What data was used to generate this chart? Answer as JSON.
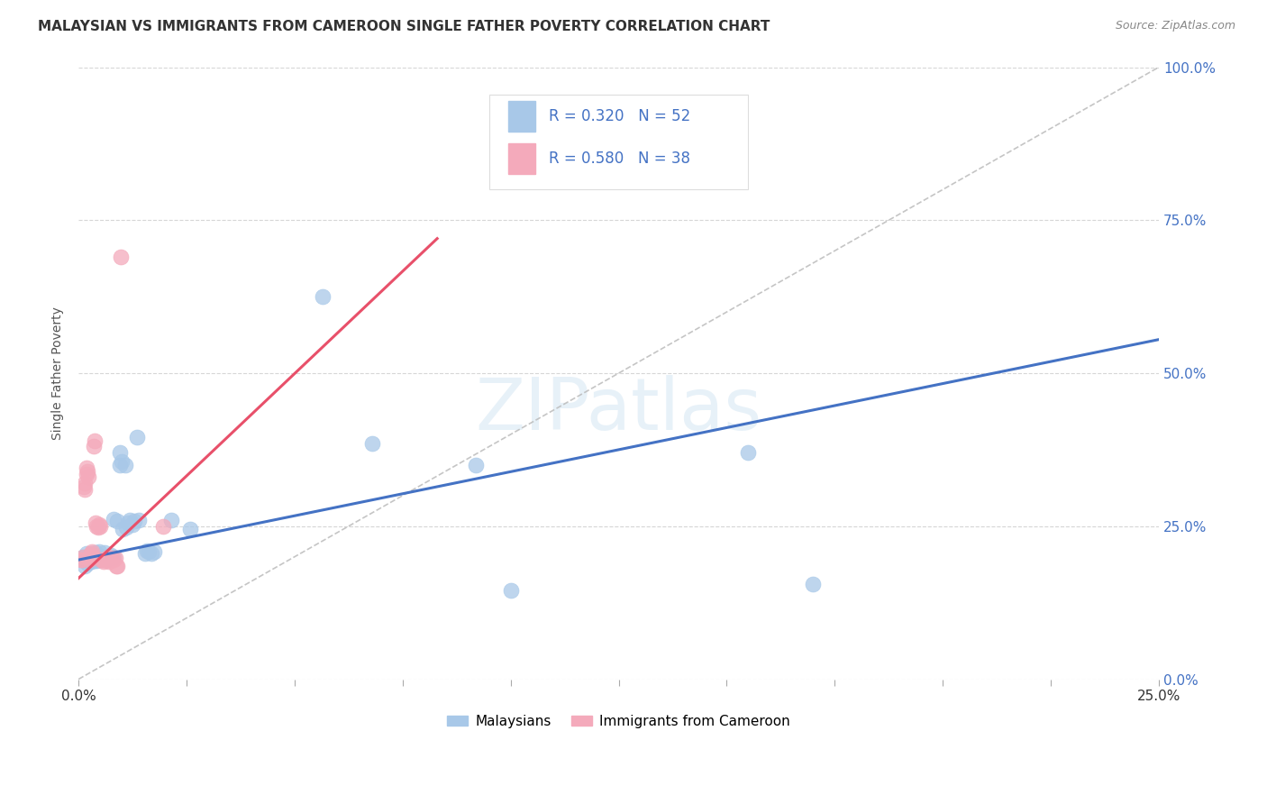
{
  "title": "MALAYSIAN VS IMMIGRANTS FROM CAMEROON SINGLE FATHER POVERTY CORRELATION CHART",
  "source": "Source: ZipAtlas.com",
  "ylabel": "Single Father Poverty",
  "watermark": "ZIPatlas",
  "legend_blue_label": "Malaysians",
  "legend_pink_label": "Immigrants from Cameroon",
  "blue_scatter_color": "#A8C8E8",
  "pink_scatter_color": "#F4AABB",
  "blue_line_color": "#4472C4",
  "pink_line_color": "#E8506A",
  "diag_line_color": "#BBBBBB",
  "xlim": [
    0.0,
    0.25
  ],
  "ylim": [
    0.0,
    1.0
  ],
  "blue_line_x": [
    0.0,
    0.25
  ],
  "blue_line_y": [
    0.195,
    0.555
  ],
  "pink_line_x": [
    0.0,
    0.083
  ],
  "pink_line_y": [
    0.165,
    0.72
  ],
  "blue_points": [
    [
      0.0008,
      0.195
    ],
    [
      0.001,
      0.2
    ],
    [
      0.0012,
      0.195
    ],
    [
      0.0015,
      0.185
    ],
    [
      0.0018,
      0.195
    ],
    [
      0.0018,
      0.205
    ],
    [
      0.002,
      0.19
    ],
    [
      0.0022,
      0.195
    ],
    [
      0.0025,
      0.195
    ],
    [
      0.0025,
      0.2
    ],
    [
      0.0028,
      0.192
    ],
    [
      0.0028,
      0.205
    ],
    [
      0.003,
      0.195
    ],
    [
      0.0032,
      0.198
    ],
    [
      0.0035,
      0.193
    ],
    [
      0.0035,
      0.2
    ],
    [
      0.0038,
      0.195
    ],
    [
      0.004,
      0.198
    ],
    [
      0.004,
      0.207
    ],
    [
      0.0042,
      0.193
    ],
    [
      0.0045,
      0.195
    ],
    [
      0.0048,
      0.208
    ],
    [
      0.005,
      0.195
    ],
    [
      0.0055,
      0.2
    ],
    [
      0.0058,
      0.198
    ],
    [
      0.006,
      0.207
    ],
    [
      0.0065,
      0.195
    ],
    [
      0.0068,
      0.2
    ],
    [
      0.007,
      0.198
    ],
    [
      0.0075,
      0.202
    ],
    [
      0.008,
      0.2
    ],
    [
      0.008,
      0.262
    ],
    [
      0.009,
      0.258
    ],
    [
      0.0095,
      0.35
    ],
    [
      0.0095,
      0.37
    ],
    [
      0.01,
      0.355
    ],
    [
      0.0102,
      0.245
    ],
    [
      0.0108,
      0.35
    ],
    [
      0.011,
      0.248
    ],
    [
      0.0115,
      0.255
    ],
    [
      0.0118,
      0.26
    ],
    [
      0.0125,
      0.252
    ],
    [
      0.013,
      0.258
    ],
    [
      0.0135,
      0.395
    ],
    [
      0.014,
      0.26
    ],
    [
      0.0155,
      0.205
    ],
    [
      0.0158,
      0.21
    ],
    [
      0.0162,
      0.208
    ],
    [
      0.0168,
      0.205
    ],
    [
      0.0175,
      0.208
    ],
    [
      0.0215,
      0.26
    ],
    [
      0.0258,
      0.245
    ],
    [
      0.0565,
      0.625
    ],
    [
      0.068,
      0.385
    ],
    [
      0.092,
      0.35
    ],
    [
      0.1,
      0.145
    ],
    [
      0.155,
      0.37
    ],
    [
      0.17,
      0.155
    ]
  ],
  "pink_points": [
    [
      0.0005,
      0.195
    ],
    [
      0.0008,
      0.195
    ],
    [
      0.001,
      0.2
    ],
    [
      0.0012,
      0.315
    ],
    [
      0.0014,
      0.32
    ],
    [
      0.0015,
      0.31
    ],
    [
      0.0018,
      0.335
    ],
    [
      0.0018,
      0.345
    ],
    [
      0.002,
      0.34
    ],
    [
      0.0022,
      0.33
    ],
    [
      0.0025,
      0.195
    ],
    [
      0.0025,
      0.2
    ],
    [
      0.0028,
      0.205
    ],
    [
      0.0028,
      0.2
    ],
    [
      0.003,
      0.2
    ],
    [
      0.0032,
      0.202
    ],
    [
      0.0032,
      0.208
    ],
    [
      0.0035,
      0.38
    ],
    [
      0.0038,
      0.39
    ],
    [
      0.004,
      0.255
    ],
    [
      0.0042,
      0.25
    ],
    [
      0.0045,
      0.248
    ],
    [
      0.0048,
      0.252
    ],
    [
      0.005,
      0.25
    ],
    [
      0.0052,
      0.195
    ],
    [
      0.0055,
      0.195
    ],
    [
      0.0058,
      0.192
    ],
    [
      0.006,
      0.195
    ],
    [
      0.0065,
      0.195
    ],
    [
      0.0068,
      0.2
    ],
    [
      0.007,
      0.192
    ],
    [
      0.0075,
      0.198
    ],
    [
      0.008,
      0.195
    ],
    [
      0.0085,
      0.198
    ],
    [
      0.0088,
      0.185
    ],
    [
      0.009,
      0.185
    ],
    [
      0.0098,
      0.69
    ],
    [
      0.0195,
      0.25
    ]
  ]
}
